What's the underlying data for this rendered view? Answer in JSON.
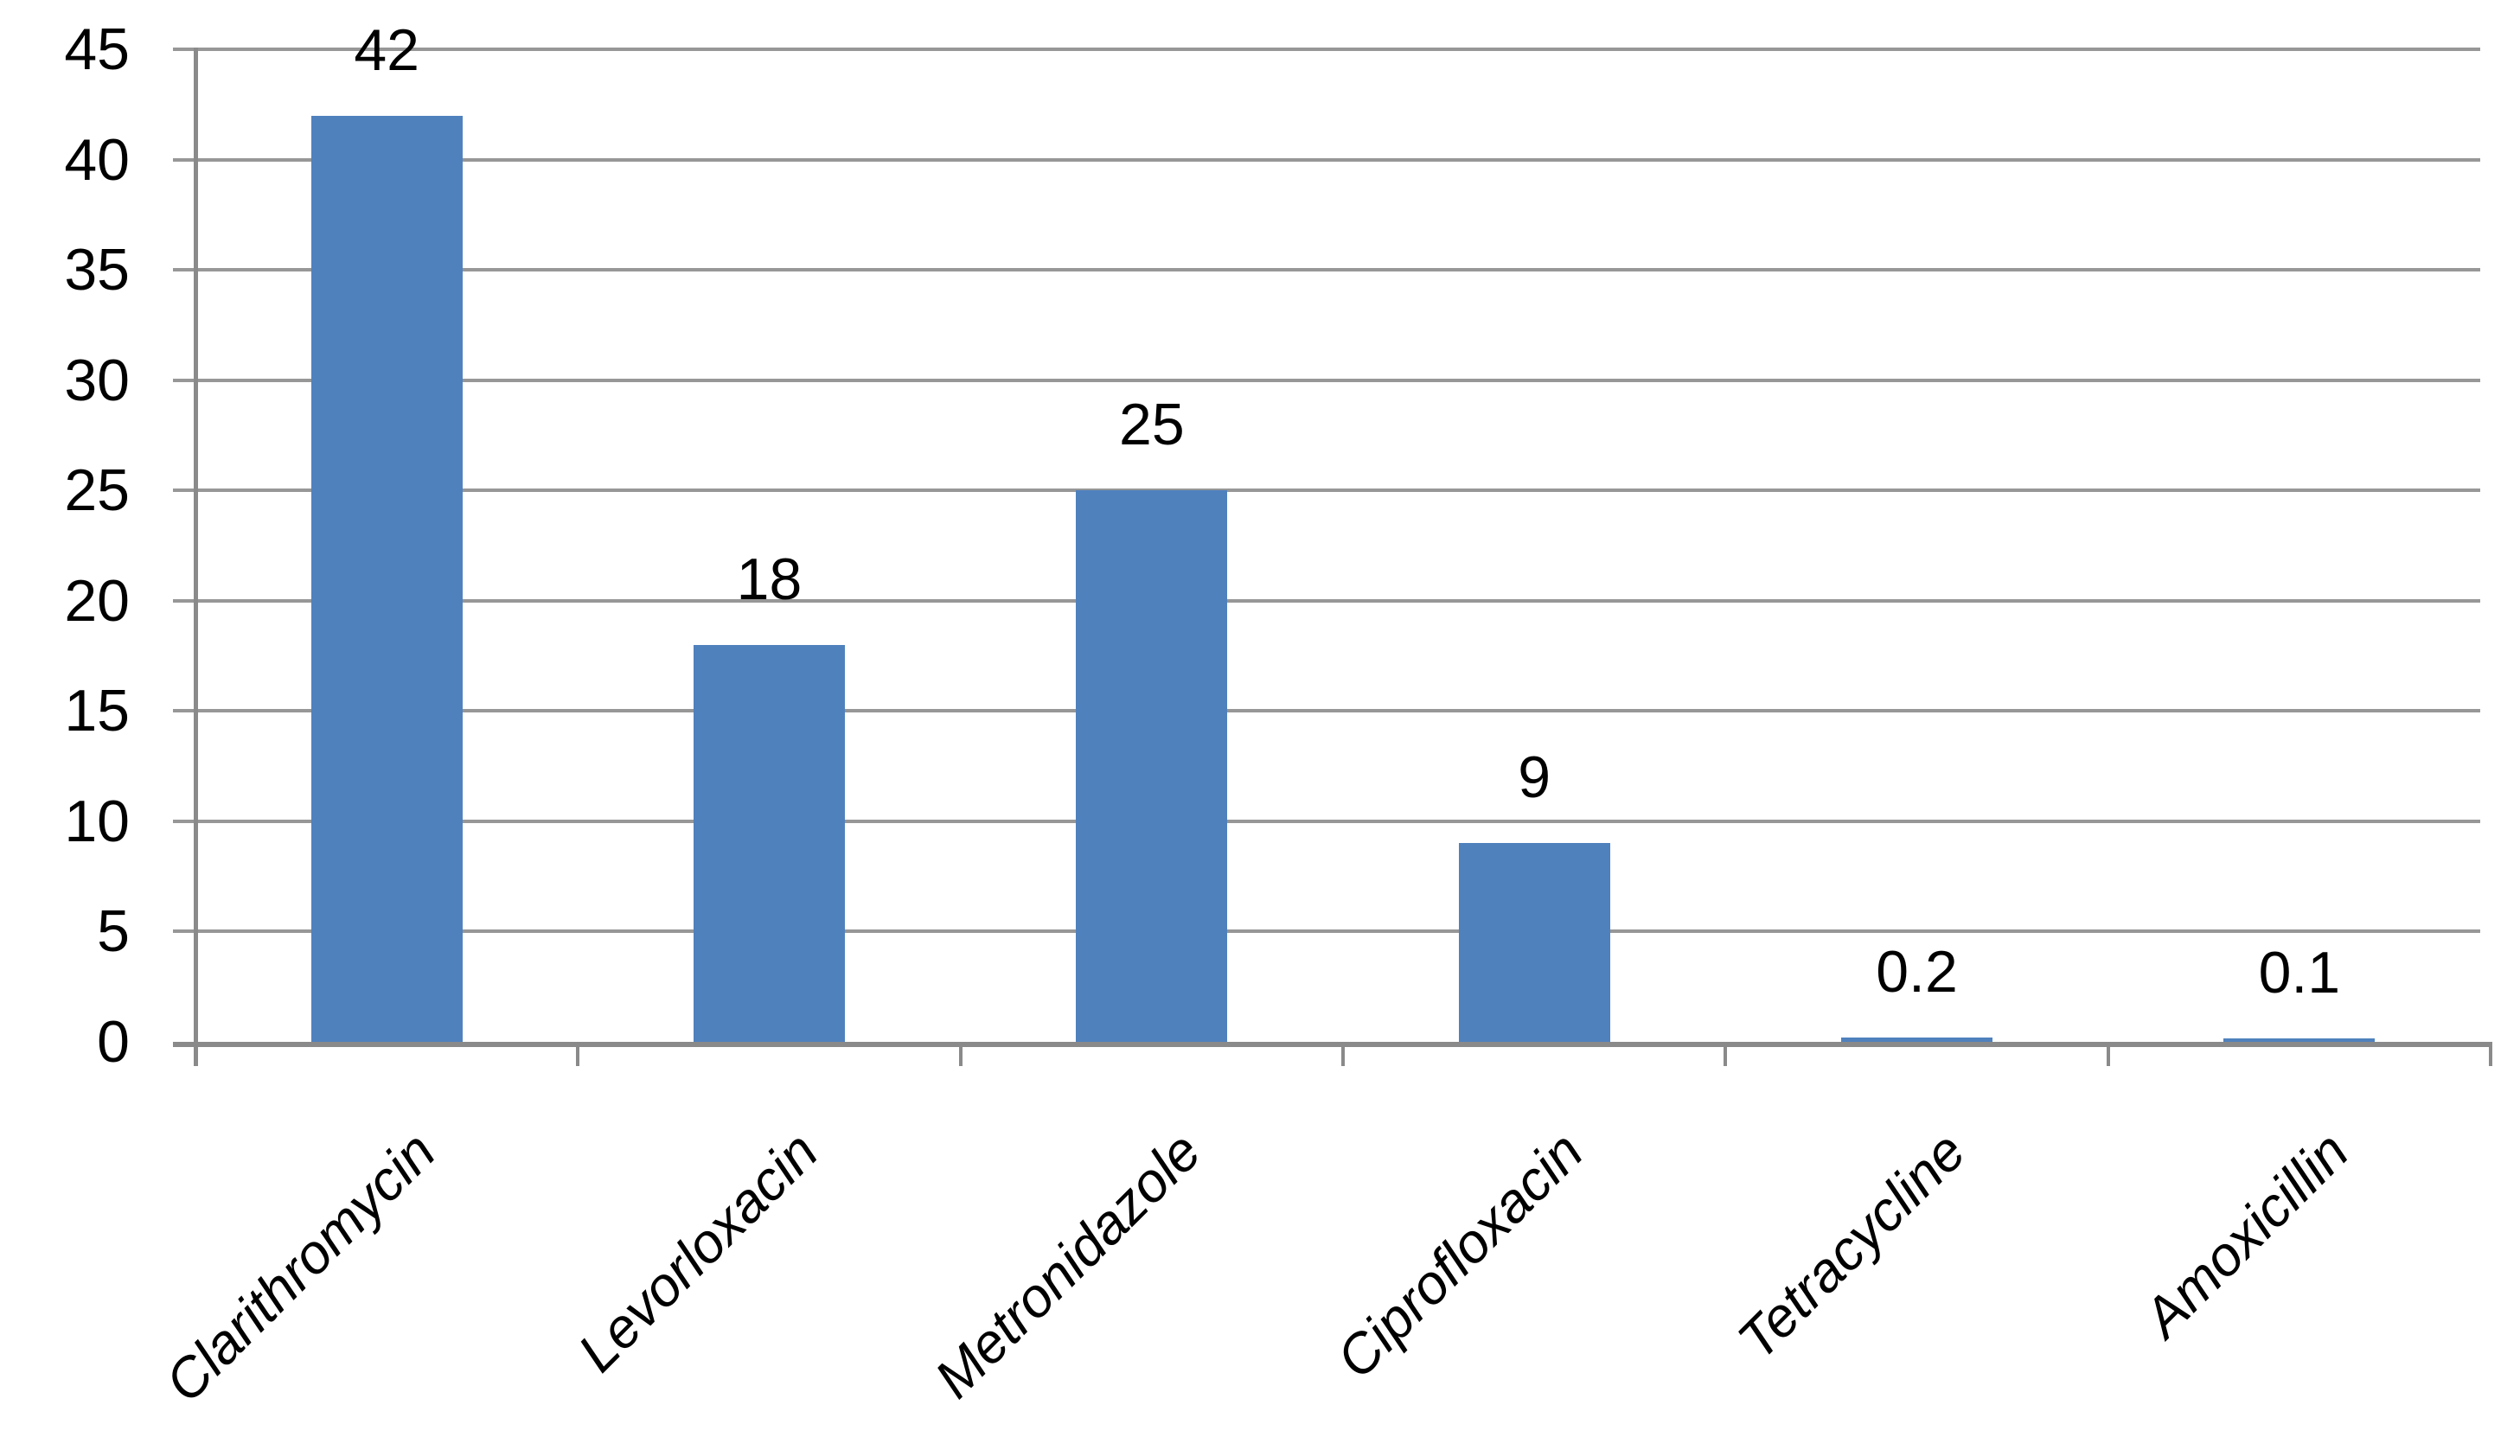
{
  "chart_data": {
    "type": "bar",
    "title": "",
    "xlabel": "",
    "ylabel": "",
    "categories": [
      "Clarithromycin",
      "Levorloxacin",
      "Metronidazole",
      "Ciprofloxacin",
      "Tetracycline",
      "Amoxicillin"
    ],
    "values": [
      42,
      18,
      25,
      9,
      0.2,
      0.1
    ],
    "data_labels": [
      "42",
      "18",
      "25",
      "9",
      "0.2",
      "0.1"
    ],
    "y_ticks": [
      0,
      5,
      10,
      15,
      20,
      25,
      30,
      35,
      40,
      45
    ],
    "ylim": [
      0,
      45
    ],
    "grid": true,
    "legend": "none",
    "value_label_position": "outside-end",
    "category_label_rotation_deg": -45,
    "category_label_style": "italic",
    "colors": {
      "bar": "#4F81BD",
      "gridline": "#979797",
      "axis": "#8A8A8A",
      "text": "#000000",
      "background": "#FFFFFF"
    }
  }
}
